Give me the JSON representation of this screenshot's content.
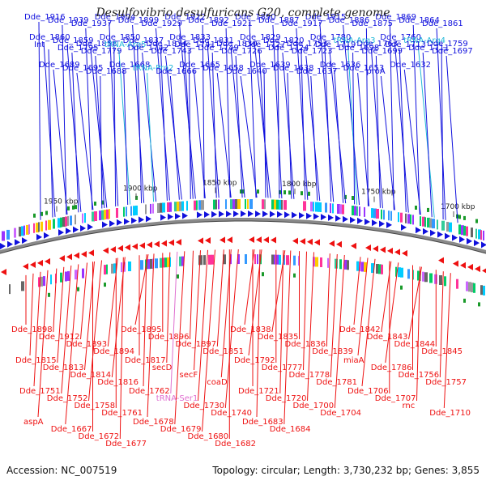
{
  "title": "Desulfovibrio desulfuricans G20, complete genome",
  "footer": {
    "accession": "Accession: NC_007519",
    "stats": "Topology: circular; Length: 3,730,232 bp; Genes: 3,855"
  },
  "colors": {
    "forward_gene": "#1010dd",
    "reverse_gene": "#ee1111",
    "trna": "#22b8d8",
    "ncrna": "#e070d0",
    "backbone": "#8a8a8a",
    "feature_green": "#1a9a2a"
  },
  "scale_labels": [
    "1950 kbp",
    "1900 kbp",
    "1850 kbp",
    "1800 kbp",
    "1750 kbp",
    "1700 kbp"
  ],
  "top_labels": [
    {
      "t": "Dde_1916",
      "k": "gene"
    },
    {
      "t": "Dde_1939",
      "k": "gene"
    },
    {
      "t": "Dde_1937",
      "k": "gene"
    },
    {
      "t": "Dde_1904",
      "k": "gene"
    },
    {
      "t": "Dde_1899",
      "k": "gene"
    },
    {
      "t": "Dde_1929",
      "k": "gene"
    },
    {
      "t": "Dde_1922",
      "k": "gene"
    },
    {
      "t": "Dde_1892",
      "k": "gene"
    },
    {
      "t": "Dde_1921",
      "k": "gene"
    },
    {
      "t": "Dde_1890",
      "k": "gene"
    },
    {
      "t": "Dde_1887",
      "k": "gene"
    },
    {
      "t": "Dde_1917",
      "k": "gene"
    },
    {
      "t": "Dde_1915",
      "k": "gene"
    },
    {
      "t": "Dde_1886",
      "k": "gene"
    },
    {
      "t": "Dde_1875",
      "k": "gene"
    },
    {
      "t": "Dde_1869",
      "k": "gene"
    },
    {
      "t": "Dde_1864",
      "k": "gene"
    },
    {
      "t": "Dde_1861",
      "k": "gene"
    },
    {
      "t": "Dde_1860",
      "k": "gene"
    },
    {
      "t": "Dde_1859",
      "k": "gene"
    },
    {
      "t": "Dde_1858",
      "k": "gene"
    },
    {
      "t": "Dde_1850",
      "k": "gene"
    },
    {
      "t": "Dde_1837",
      "k": "gene"
    },
    {
      "t": "Dde_1834",
      "k": "gene"
    },
    {
      "t": "Dde_1833",
      "k": "gene"
    },
    {
      "t": "Dde_1831",
      "k": "gene"
    },
    {
      "t": "Dde_1830",
      "k": "gene"
    },
    {
      "t": "Dde_1829",
      "k": "gene"
    },
    {
      "t": "Dde_1820",
      "k": "gene"
    },
    {
      "t": "Dde_1753",
      "k": "gene"
    },
    {
      "t": "Dde_1780",
      "k": "gene"
    },
    {
      "t": "tRNA-Arg3",
      "k": "trna"
    },
    {
      "t": "Dde_1763",
      "k": "gene"
    },
    {
      "t": "Dde_1760",
      "k": "gene"
    },
    {
      "t": "tRNA-Arg4",
      "k": "trna"
    },
    {
      "t": "Dde_1759",
      "k": "gene"
    },
    {
      "t": "Int",
      "k": "gene"
    },
    {
      "t": "Dde_1795",
      "k": "gene"
    },
    {
      "t": "Dde_1779",
      "k": "gene"
    },
    {
      "t": "tRNA-Arg5",
      "k": "trna"
    },
    {
      "t": "Dde_1742",
      "k": "gene"
    },
    {
      "t": "Dde_1743",
      "k": "gene"
    },
    {
      "t": "Dde_1741",
      "k": "gene"
    },
    {
      "t": "Dde_1749",
      "k": "gene"
    },
    {
      "t": "Dde_1726",
      "k": "gene"
    },
    {
      "t": "Dde_1727",
      "k": "gene"
    },
    {
      "t": "Dde_1724",
      "k": "gene"
    },
    {
      "t": "Dde_1723",
      "k": "gene"
    },
    {
      "t": "Dde_1719",
      "k": "gene"
    },
    {
      "t": "Dde_1698",
      "k": "gene"
    },
    {
      "t": "Dde_1699",
      "k": "gene"
    },
    {
      "t": "Dde_1713",
      "k": "gene"
    },
    {
      "t": "Dde_1711",
      "k": "gene"
    },
    {
      "t": "Dde_1697",
      "k": "gene"
    },
    {
      "t": "Dde_1689",
      "k": "gene"
    },
    {
      "t": "Dde_1695",
      "k": "gene"
    },
    {
      "t": "Dde_1688",
      "k": "gene"
    },
    {
      "t": "Dde_1668",
      "k": "gene"
    },
    {
      "t": "tRNA-Pro2",
      "k": "trna"
    },
    {
      "t": "Dde_1666",
      "k": "gene"
    },
    {
      "t": "Dde_1665",
      "k": "gene"
    },
    {
      "t": "Dde_1658",
      "k": "gene"
    },
    {
      "t": "Dde_1640",
      "k": "gene"
    },
    {
      "t": "Dde_1639",
      "k": "gene"
    },
    {
      "t": "Dde_1638",
      "k": "gene"
    },
    {
      "t": "Dde_1637",
      "k": "gene"
    },
    {
      "t": "Dde_1636",
      "k": "gene"
    },
    {
      "t": "Dde_1653",
      "k": "gene"
    },
    {
      "t": "proA",
      "k": "gene"
    },
    {
      "t": "Dde_1632",
      "k": "gene"
    }
  ],
  "bottom_labels": [
    {
      "t": "Dde_1898",
      "k": "gene"
    },
    {
      "t": "Dde_1912",
      "k": "gene"
    },
    {
      "t": "Dde_1893",
      "k": "gene"
    },
    {
      "t": "Dde_1894",
      "k": "gene"
    },
    {
      "t": "Dde_1895",
      "k": "gene"
    },
    {
      "t": "Dde_1896",
      "k": "gene"
    },
    {
      "t": "Dde_1897",
      "k": "gene"
    },
    {
      "t": "Dde_1851",
      "k": "gene"
    },
    {
      "t": "Dde_1838",
      "k": "gene"
    },
    {
      "t": "Dde_1835",
      "k": "gene"
    },
    {
      "t": "Dde_1836",
      "k": "gene"
    },
    {
      "t": "Dde_1839",
      "k": "gene"
    },
    {
      "t": "Dde_1842",
      "k": "gene"
    },
    {
      "t": "Dde_1843",
      "k": "gene"
    },
    {
      "t": "Dde_1844",
      "k": "gene"
    },
    {
      "t": "Dde_1845",
      "k": "gene"
    },
    {
      "t": "Dde_1815",
      "k": "gene"
    },
    {
      "t": "Dde_1813",
      "k": "gene"
    },
    {
      "t": "Dde_1814",
      "k": "gene"
    },
    {
      "t": "Dde_1816",
      "k": "gene"
    },
    {
      "t": "Dde_1817",
      "k": "gene"
    },
    {
      "t": "secD",
      "k": "gene"
    },
    {
      "t": "secF",
      "k": "gene"
    },
    {
      "t": "coaD",
      "k": "gene"
    },
    {
      "t": "Dde_1792",
      "k": "gene"
    },
    {
      "t": "Dde_1777",
      "k": "gene"
    },
    {
      "t": "Dde_1778",
      "k": "gene"
    },
    {
      "t": "Dde_1781",
      "k": "gene"
    },
    {
      "t": "miaA",
      "k": "gene"
    },
    {
      "t": "Dde_1786",
      "k": "gene"
    },
    {
      "t": "Dde_1756",
      "k": "gene"
    },
    {
      "t": "Dde_1757",
      "k": "gene"
    },
    {
      "t": "Dde_1751",
      "k": "gene"
    },
    {
      "t": "Dde_1752",
      "k": "gene"
    },
    {
      "t": "Dde_1758",
      "k": "gene"
    },
    {
      "t": "Dde_1761",
      "k": "gene"
    },
    {
      "t": "Dde_1762",
      "k": "gene"
    },
    {
      "t": "tRNA-Ser1",
      "k": "ncrna"
    },
    {
      "t": "Dde_1730",
      "k": "gene"
    },
    {
      "t": "Dde_1740",
      "k": "gene"
    },
    {
      "t": "Dde_1721",
      "k": "gene"
    },
    {
      "t": "Dde_1720",
      "k": "gene"
    },
    {
      "t": "Dde_1700",
      "k": "gene"
    },
    {
      "t": "Dde_1704",
      "k": "gene"
    },
    {
      "t": "Dde_1706",
      "k": "gene"
    },
    {
      "t": "Dde_1707",
      "k": "gene"
    },
    {
      "t": "rnc",
      "k": "gene"
    },
    {
      "t": "Dde_1710",
      "k": "gene"
    },
    {
      "t": "aspA",
      "k": "gene"
    },
    {
      "t": "Dde_1667",
      "k": "gene"
    },
    {
      "t": "Dde_1672",
      "k": "gene"
    },
    {
      "t": "Dde_1677",
      "k": "gene"
    },
    {
      "t": "Dde_1678",
      "k": "gene"
    },
    {
      "t": "Dde_1679",
      "k": "gene"
    },
    {
      "t": "Dde_1680",
      "k": "gene"
    },
    {
      "t": "Dde_1682",
      "k": "gene"
    },
    {
      "t": "Dde_1683",
      "k": "gene"
    },
    {
      "t": "Dde_1684",
      "k": "gene"
    }
  ]
}
